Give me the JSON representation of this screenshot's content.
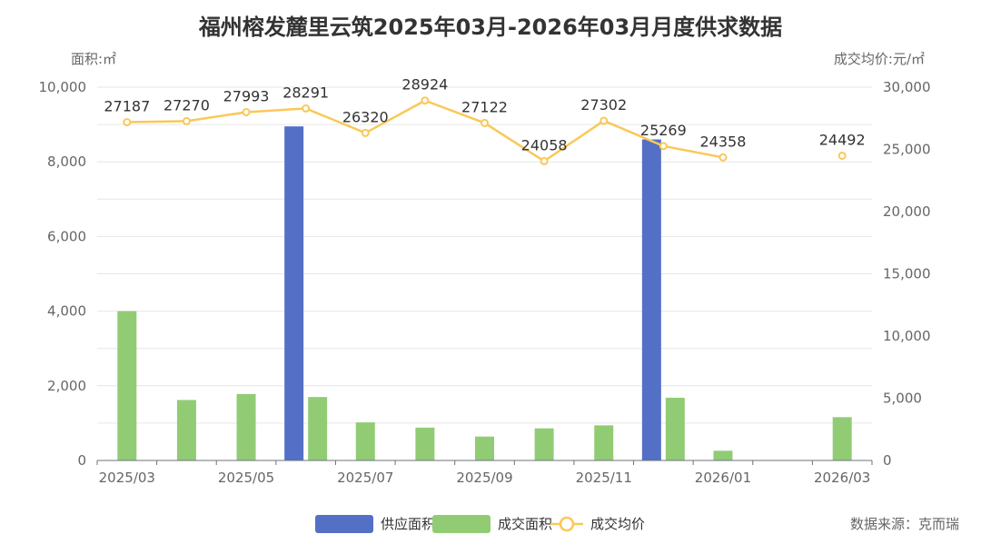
{
  "chart_data": {
    "type": "bar",
    "title": "福州榕发麓里云筑2025年03月-2026年03月月度供求数据",
    "y_left_label": "面积:㎡",
    "y_right_label": "成交均价:元/㎡",
    "y_left_range": [
      0,
      10000
    ],
    "y_right_range": [
      0,
      30000
    ],
    "y_left_ticks": [
      "0",
      "2,000",
      "4,000",
      "6,000",
      "8,000",
      "10,000"
    ],
    "y_right_ticks": [
      "0",
      "5,000",
      "10,000",
      "15,000",
      "20,000",
      "25,000",
      "30,000"
    ],
    "x_tick_labels": [
      "2025/03",
      "2025/05",
      "2025/07",
      "2025/09",
      "2025/11",
      "2026/01",
      "2026/03"
    ],
    "categories": [
      "2025/03",
      "2025/04",
      "2025/05",
      "2025/06",
      "2025/07",
      "2025/08",
      "2025/09",
      "2025/10",
      "2025/11",
      "2025/12",
      "2026/01",
      "2026/02",
      "2026/03"
    ],
    "grid": true,
    "legend_position": "bottom",
    "series": [
      {
        "name": "供应面积",
        "type": "bar",
        "axis": "left",
        "color": "#5470c6",
        "values": [
          0,
          0,
          0,
          8950,
          0,
          0,
          0,
          0,
          0,
          8600,
          0,
          0,
          0
        ]
      },
      {
        "name": "成交面积",
        "type": "bar",
        "axis": "left",
        "color": "#91cc75",
        "values": [
          4000,
          1620,
          1780,
          1700,
          1020,
          880,
          640,
          860,
          940,
          1680,
          260,
          0,
          1160
        ]
      },
      {
        "name": "成交均价",
        "type": "line",
        "axis": "right",
        "color": "#fac858",
        "values": [
          27187,
          27270,
          27993,
          28291,
          26320,
          28924,
          27122,
          24058,
          27302,
          25269,
          24358,
          null,
          24492
        ],
        "labels": [
          "27187",
          "27270",
          "27993",
          "28291",
          "26320",
          "28924",
          "27122",
          "24058",
          "27302",
          "25269",
          "24358",
          "",
          "24492"
        ]
      }
    ]
  },
  "source_text": "数据来源：克而瑞"
}
